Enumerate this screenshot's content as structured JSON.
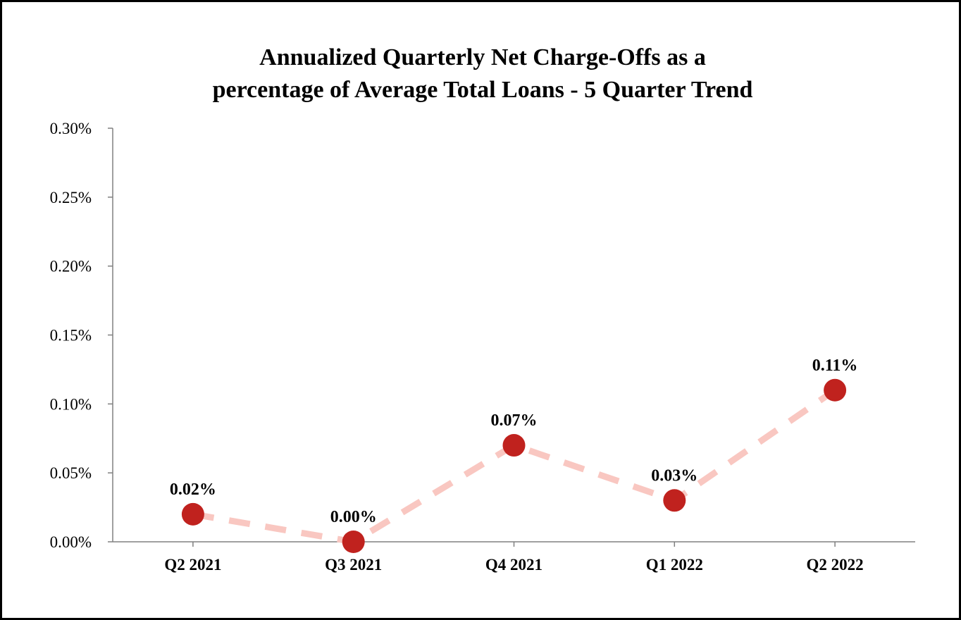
{
  "chart_data": {
    "type": "line",
    "title_lines": [
      "Annualized Quarterly Net Charge-Offs as a",
      "percentage of Average Total Loans - 5 Quarter Trend"
    ],
    "categories": [
      "Q2 2021",
      "Q3 2021",
      "Q4 2021",
      "Q1 2022",
      "Q2 2022"
    ],
    "values": [
      0.02,
      0.0,
      0.07,
      0.03,
      0.11
    ],
    "data_labels": [
      "0.02%",
      "0.00%",
      "0.07%",
      "0.03%",
      "0.11%"
    ],
    "ylim": [
      0,
      0.3
    ],
    "y_ticks": [
      0,
      0.05,
      0.1,
      0.15,
      0.2,
      0.25,
      0.3
    ],
    "y_tick_labels": [
      "0.00%",
      "0.05%",
      "0.10%",
      "0.15%",
      "0.20%",
      "0.25%",
      "0.30%"
    ],
    "grid": false,
    "legend": "none",
    "line_style": "dashed",
    "colors": {
      "line": "#F9C7C1",
      "marker": "#C0221E",
      "axis": "#808080"
    }
  }
}
